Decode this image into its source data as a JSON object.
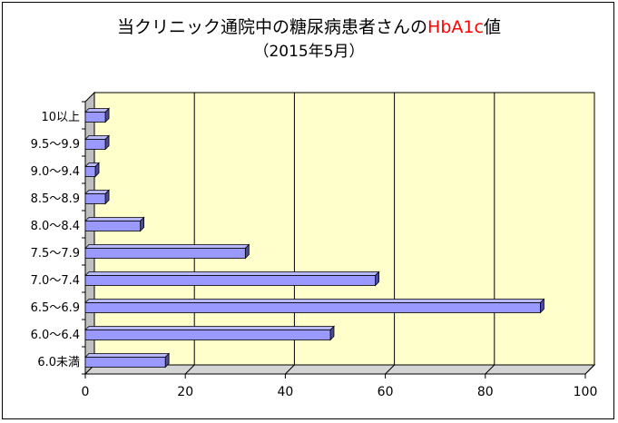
{
  "title": {
    "prefix": "当クリニック通院中の糖尿病患者さんの",
    "accent": "HbA1c",
    "suffix": "値"
  },
  "subtitle": "（2015年5月）",
  "colors": {
    "plot_bg": "#ffffcc",
    "wall_left": "#c0c0c0",
    "floor": "#d4d4d4",
    "bar_front": "#9999ff",
    "bar_top": "#b8b8ff",
    "bar_side": "#4b4b99",
    "title_accent": "#ff0000"
  },
  "chart_data": {
    "type": "bar",
    "orientation": "horizontal",
    "categories": [
      "10以上",
      "9.5～9.9",
      "9.0～9.4",
      "8.5～8.9",
      "8.0～8.4",
      "7.5～7.9",
      "7.0～7.4",
      "6.5～6.9",
      "6.0～6.4",
      "6.0未満"
    ],
    "values": [
      4,
      4,
      2,
      4,
      11,
      32,
      58,
      91,
      49,
      16
    ],
    "xlim": [
      0,
      100
    ],
    "xticks": [
      0,
      20,
      40,
      60,
      80,
      100
    ],
    "grid": "vertical",
    "legend": "none",
    "title": "当クリニック通院中の糖尿病患者さんのHbA1c値",
    "xlabel": "",
    "ylabel": ""
  }
}
